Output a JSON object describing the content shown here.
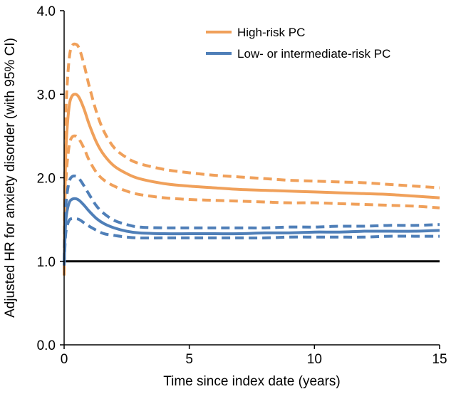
{
  "chart_data": {
    "type": "line",
    "title": "",
    "xlabel": "Time since index date (years)",
    "ylabel": "Adjusted HR for anxiety disorder (with 95% CI)",
    "xlim": [
      0,
      15
    ],
    "ylim": [
      0,
      4
    ],
    "xticks": [
      0,
      5,
      10,
      15
    ],
    "yticks": [
      0.0,
      1.0,
      2.0,
      3.0,
      4.0
    ],
    "ytick_labels": [
      "0.0",
      "1.0",
      "2.0",
      "3.0",
      "4.0"
    ],
    "xtick_labels": [
      "0",
      "5",
      "10",
      "15"
    ],
    "grid": false,
    "legend_position": "top-right",
    "colors": {
      "high_risk": "#F0A05A",
      "low_risk": "#4F7FB8",
      "reference": "#000000"
    },
    "reference_line": {
      "name": "HR = 1",
      "y": 1.0
    },
    "series": [
      {
        "name": "High-risk PC",
        "legend": "High-risk PC",
        "color": "#F0A05A",
        "style": "solid",
        "x": [
          0,
          0.05,
          0.1,
          0.2,
          0.3,
          0.45,
          0.6,
          0.8,
          1.0,
          1.3,
          1.6,
          2.0,
          2.5,
          3.0,
          4.0,
          5.0,
          6.0,
          7.0,
          8.0,
          9.0,
          10.0,
          11.0,
          12.0,
          13.0,
          14.0,
          15.0
        ],
        "y": [
          0.9,
          2.1,
          2.5,
          2.85,
          2.97,
          3.0,
          2.96,
          2.82,
          2.64,
          2.42,
          2.27,
          2.14,
          2.05,
          1.99,
          1.93,
          1.9,
          1.88,
          1.86,
          1.85,
          1.84,
          1.83,
          1.82,
          1.81,
          1.8,
          1.78,
          1.76
        ]
      },
      {
        "name": "High-risk PC upper 95% CI",
        "color": "#F0A05A",
        "style": "dashed",
        "x": [
          0,
          0.05,
          0.1,
          0.2,
          0.3,
          0.45,
          0.6,
          0.8,
          1.0,
          1.3,
          1.6,
          2.0,
          2.5,
          3.0,
          4.0,
          5.0,
          6.0,
          7.0,
          8.0,
          9.0,
          10.0,
          11.0,
          12.0,
          13.0,
          14.0,
          15.0
        ],
        "y": [
          1.0,
          2.5,
          3.0,
          3.42,
          3.57,
          3.6,
          3.55,
          3.35,
          3.1,
          2.78,
          2.55,
          2.36,
          2.24,
          2.17,
          2.1,
          2.06,
          2.03,
          2.01,
          1.99,
          1.97,
          1.96,
          1.95,
          1.94,
          1.92,
          1.9,
          1.88
        ]
      },
      {
        "name": "High-risk PC lower 95% CI",
        "color": "#F0A05A",
        "style": "dashed",
        "x": [
          0,
          0.05,
          0.1,
          0.2,
          0.3,
          0.45,
          0.6,
          0.8,
          1.0,
          1.3,
          1.6,
          2.0,
          2.5,
          3.0,
          4.0,
          5.0,
          6.0,
          7.0,
          8.0,
          9.0,
          10.0,
          11.0,
          12.0,
          13.0,
          14.0,
          15.0
        ],
        "y": [
          0.83,
          1.75,
          2.1,
          2.38,
          2.48,
          2.5,
          2.46,
          2.35,
          2.21,
          2.06,
          1.97,
          1.9,
          1.84,
          1.8,
          1.76,
          1.74,
          1.73,
          1.72,
          1.71,
          1.7,
          1.7,
          1.69,
          1.68,
          1.67,
          1.66,
          1.64
        ]
      },
      {
        "name": "Low- or intermediate-risk PC",
        "legend": "Low- or intermediate-risk PC",
        "color": "#4F7FB8",
        "style": "solid",
        "x": [
          0,
          0.05,
          0.1,
          0.2,
          0.3,
          0.45,
          0.6,
          0.8,
          1.0,
          1.3,
          1.6,
          2.0,
          2.5,
          3.0,
          4.0,
          5.0,
          6.0,
          7.0,
          8.0,
          9.0,
          10.0,
          11.0,
          12.0,
          13.0,
          14.0,
          15.0
        ],
        "y": [
          0.95,
          1.4,
          1.57,
          1.7,
          1.74,
          1.75,
          1.73,
          1.67,
          1.6,
          1.51,
          1.45,
          1.4,
          1.36,
          1.34,
          1.33,
          1.33,
          1.33,
          1.33,
          1.34,
          1.34,
          1.35,
          1.35,
          1.36,
          1.36,
          1.36,
          1.37
        ]
      },
      {
        "name": "Low- or intermediate-risk PC upper 95% CI",
        "color": "#4F7FB8",
        "style": "dashed",
        "x": [
          0,
          0.05,
          0.1,
          0.2,
          0.3,
          0.45,
          0.6,
          0.8,
          1.0,
          1.3,
          1.6,
          2.0,
          2.5,
          3.0,
          4.0,
          5.0,
          6.0,
          7.0,
          8.0,
          9.0,
          10.0,
          11.0,
          12.0,
          13.0,
          14.0,
          15.0
        ],
        "y": [
          1.0,
          1.55,
          1.77,
          1.95,
          2.01,
          2.02,
          1.99,
          1.9,
          1.8,
          1.66,
          1.57,
          1.49,
          1.44,
          1.41,
          1.4,
          1.4,
          1.4,
          1.4,
          1.4,
          1.41,
          1.41,
          1.42,
          1.42,
          1.43,
          1.43,
          1.44
        ]
      },
      {
        "name": "Low- or intermediate-risk PC lower 95% CI",
        "color": "#4F7FB8",
        "style": "dashed",
        "x": [
          0,
          0.05,
          0.1,
          0.2,
          0.3,
          0.45,
          0.6,
          0.8,
          1.0,
          1.3,
          1.6,
          2.0,
          2.5,
          3.0,
          4.0,
          5.0,
          6.0,
          7.0,
          8.0,
          9.0,
          10.0,
          11.0,
          12.0,
          13.0,
          14.0,
          15.0
        ],
        "y": [
          0.95,
          1.28,
          1.4,
          1.49,
          1.51,
          1.51,
          1.5,
          1.46,
          1.42,
          1.37,
          1.33,
          1.31,
          1.29,
          1.28,
          1.28,
          1.28,
          1.28,
          1.28,
          1.28,
          1.29,
          1.29,
          1.29,
          1.29,
          1.3,
          1.3,
          1.3
        ]
      }
    ]
  }
}
